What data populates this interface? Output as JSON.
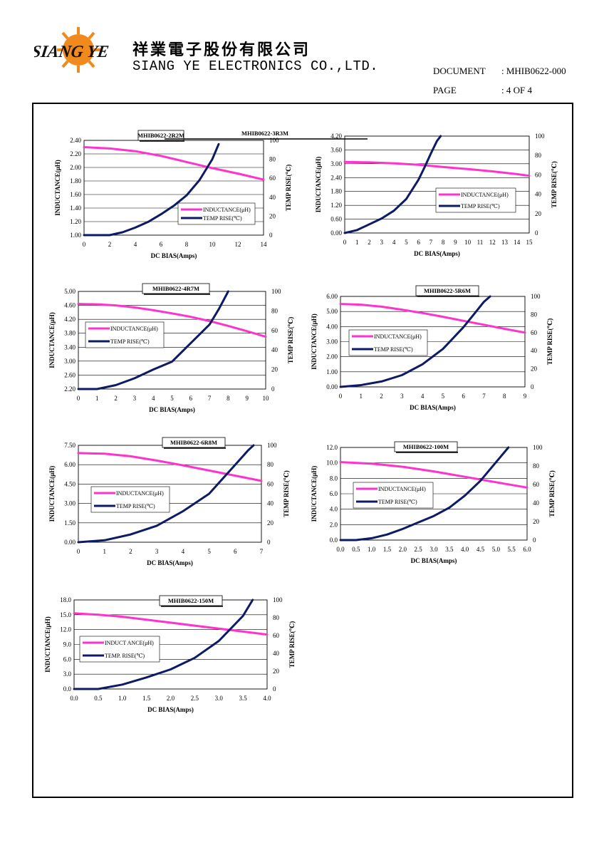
{
  "header": {
    "company_cn": "祥業電子股份有限公司",
    "company_en": "SIANG YE ELECTRONICS CO.,LTD.",
    "logo_text": "SIANG YE",
    "document_label": "DOCUMENT",
    "document_value": ": MHIB0622-000",
    "page_label": "PAGE",
    "page_value": ": 4 OF 4"
  },
  "colors": {
    "inductance": "#ff33cc",
    "temp": "#0d1a66",
    "grid": "#000000"
  },
  "chart_data": [
    {
      "type": "line",
      "title": "MHIB0622-2R2M",
      "xlabel": "DC BIAS(Amps)",
      "ylabel": "INDUCTANCE(μH)",
      "y2label": "TEMP RISE(℃)",
      "xlim": [
        0,
        14
      ],
      "xticks": [
        "0",
        "2",
        "4",
        "6",
        "8",
        "10",
        "12",
        "14"
      ],
      "ylim": [
        1.0,
        2.4
      ],
      "yticks": [
        "1.00",
        "1.20",
        "1.40",
        "1.60",
        "1.80",
        "2.00",
        "2.20",
        "2.40"
      ],
      "y2lim": [
        0,
        100
      ],
      "y2ticks": [
        "0",
        "20",
        "40",
        "60",
        "80",
        "100"
      ],
      "legend": {
        "placement": "lower-right",
        "inductance": "INDUCTANCE(μH)",
        "temp": "TEMP RISE(℃)"
      },
      "series": [
        {
          "name": "INDUCTANCE(μH)",
          "axis": "left",
          "x": [
            0,
            2,
            4,
            6,
            8,
            10,
            12,
            14
          ],
          "y": [
            2.3,
            2.28,
            2.24,
            2.17,
            2.08,
            1.99,
            1.91,
            1.82
          ]
        },
        {
          "name": "TEMP RISE(℃)",
          "axis": "right",
          "x": [
            0,
            1,
            2,
            3,
            4,
            5,
            6,
            7,
            8,
            9,
            10,
            10.5
          ],
          "y": [
            0,
            0,
            0,
            3,
            8,
            14,
            22,
            31,
            42,
            58,
            80,
            96
          ]
        }
      ]
    },
    {
      "type": "line",
      "title": "MHIB0622-3R3M",
      "xlabel": "DC BIAS(Amps)",
      "ylabel": "INDUCTANCE(μH)",
      "y2label": "TEMP RISE(℃)",
      "xlim": [
        0,
        15
      ],
      "xticks": [
        "0",
        "1",
        "2",
        "3",
        "4",
        "5",
        "6",
        "7",
        "8",
        "9",
        "10",
        "11",
        "12",
        "13",
        "14",
        "15"
      ],
      "ylim": [
        0,
        4.2
      ],
      "yticks": [
        "0.00",
        "0.60",
        "1.20",
        "1.80",
        "2.40",
        "3.00",
        "3.60",
        "4.20"
      ],
      "y2lim": [
        0,
        100
      ],
      "y2ticks": [
        "0",
        "20",
        "40",
        "60",
        "80",
        "100"
      ],
      "legend": {
        "placement": "right",
        "inductance": "INDUCTANCE(μH)",
        "temp": "TEMP RISE(℃)"
      },
      "series": [
        {
          "name": "INDUCTANCE(μH)",
          "axis": "left",
          "x": [
            0,
            2,
            4,
            6,
            8,
            10,
            12,
            14,
            15
          ],
          "y": [
            3.08,
            3.06,
            3.02,
            2.96,
            2.86,
            2.77,
            2.67,
            2.55,
            2.48
          ]
        },
        {
          "name": "TEMP RISE(℃)",
          "axis": "right",
          "x": [
            0,
            1,
            2,
            3,
            4,
            5,
            6,
            6.5,
            7,
            7.5,
            7.8
          ],
          "y": [
            0,
            3,
            9,
            15,
            23,
            35,
            55,
            68,
            82,
            95,
            100
          ]
        }
      ]
    },
    {
      "type": "line",
      "title": "MHIB0622-4R7M",
      "xlabel": "DC BIAS(Amps)",
      "ylabel": "INDUCTANCE(μH)",
      "y2label": "TEMP RISE(℃)",
      "xlim": [
        0,
        10
      ],
      "xticks": [
        "0",
        "1",
        "2",
        "3",
        "4",
        "5",
        "6",
        "7",
        "8",
        "9",
        "10"
      ],
      "ylim": [
        2.2,
        5.0
      ],
      "yticks": [
        "2.20",
        "2.60",
        "3.00",
        "3.40",
        "3.80",
        "4.20",
        "4.60",
        "5.00"
      ],
      "y2lim": [
        0,
        100
      ],
      "y2ticks": [
        "0",
        "20",
        "40",
        "60",
        "80",
        "100"
      ],
      "legend": {
        "placement": "left",
        "inductance": "INDUCTANCE(μH)",
        "temp": "TEMP RISE(℃)"
      },
      "series": [
        {
          "name": "INDUCTANCE(μH)",
          "axis": "left",
          "x": [
            0,
            1,
            2,
            3,
            4,
            5,
            6,
            7,
            8,
            9,
            10
          ],
          "y": [
            4.64,
            4.63,
            4.6,
            4.54,
            4.46,
            4.37,
            4.27,
            4.15,
            4.01,
            3.86,
            3.7
          ]
        },
        {
          "name": "TEMP RISE(℃)",
          "axis": "right",
          "x": [
            0,
            1,
            2,
            3,
            4,
            5,
            6,
            7,
            7.5,
            8
          ],
          "y": [
            0,
            0,
            4,
            11,
            20,
            28,
            47,
            66,
            82,
            100
          ]
        }
      ]
    },
    {
      "type": "line",
      "title": "MHIB0622-5R6M",
      "xlabel": "DC BIAS(Amps)",
      "ylabel": "INDUCTANCE(μH)",
      "y2label": "TEMP RISE(℃)",
      "xlim": [
        0,
        9
      ],
      "xticks": [
        "0",
        "1",
        "2",
        "3",
        "4",
        "5",
        "6",
        "7",
        "8",
        "9"
      ],
      "ylim": [
        0,
        6.0
      ],
      "yticks": [
        "0.00",
        "1.00",
        "2.00",
        "3.00",
        "4.00",
        "5.00",
        "6.00"
      ],
      "y2lim": [
        0,
        100
      ],
      "y2ticks": [
        "0",
        "20",
        "40",
        "60",
        "80",
        "100"
      ],
      "legend": {
        "placement": "left",
        "inductance": "INDUCTANCE(μH)",
        "temp": "TEMP RISE(℃)"
      },
      "series": [
        {
          "name": "INDUCTANCE(μH)",
          "axis": "left",
          "x": [
            0,
            1,
            2,
            3,
            4,
            5,
            6,
            7,
            8,
            9
          ],
          "y": [
            5.5,
            5.45,
            5.32,
            5.12,
            4.9,
            4.65,
            4.38,
            4.12,
            3.85,
            3.6
          ]
        },
        {
          "name": "TEMP RISE(℃)",
          "axis": "right",
          "x": [
            0,
            1,
            2,
            3,
            4,
            5,
            6,
            6.5,
            7,
            7.3
          ],
          "y": [
            0,
            2,
            6,
            13,
            25,
            42,
            66,
            80,
            94,
            100
          ]
        }
      ]
    },
    {
      "type": "line",
      "title": "MHIB0622-6R8M",
      "xlabel": "DC BIAS(Amps)",
      "ylabel": "INDUCTANCE(μH)",
      "y2label": "TEMP RISE(℃)",
      "xlim": [
        0,
        7
      ],
      "xticks": [
        "0",
        "1",
        "2",
        "3",
        "4",
        "5",
        "6",
        "7"
      ],
      "ylim": [
        0,
        7.5
      ],
      "yticks": [
        "0.00",
        "1.50",
        "3.00",
        "4.50",
        "6.00",
        "7.50"
      ],
      "y2lim": [
        0,
        100
      ],
      "y2ticks": [
        "0",
        "20",
        "40",
        "60",
        "80",
        "100"
      ],
      "legend": {
        "placement": "left",
        "inductance": "INDUCTANCE(μH)",
        "temp": "TEMP RISE(℃)"
      },
      "series": [
        {
          "name": "INDUCTANCE(μH)",
          "axis": "left",
          "x": [
            0,
            1,
            2,
            3,
            4,
            5,
            6,
            7
          ],
          "y": [
            6.9,
            6.85,
            6.65,
            6.32,
            5.95,
            5.55,
            5.15,
            4.75
          ]
        },
        {
          "name": "TEMP RISE(℃)",
          "axis": "right",
          "x": [
            0,
            1,
            2,
            3,
            4,
            5,
            5.5,
            6,
            6.5,
            6.7
          ],
          "y": [
            0,
            2,
            8,
            17,
            32,
            50,
            65,
            80,
            95,
            100
          ]
        }
      ]
    },
    {
      "type": "line",
      "title": "MHIB0622-100M",
      "xlabel": "DC BIAS(Amps)",
      "ylabel": "INDUCTANCE(μH)",
      "y2label": "TEMP RISE(℃)",
      "xlim": [
        0,
        6
      ],
      "xticks": [
        "0.0",
        "0.5",
        "1.0",
        "1.5",
        "2.0",
        "2.5",
        "3.0",
        "3.5",
        "4.0",
        "4.5",
        "5.0",
        "5.5",
        "6.0"
      ],
      "ylim": [
        0,
        12.0
      ],
      "yticks": [
        "0.0",
        "2.0",
        "4.0",
        "6.0",
        "8.0",
        "10.0",
        "12.0"
      ],
      "y2lim": [
        0,
        100
      ],
      "y2ticks": [
        "0",
        "20",
        "40",
        "60",
        "80",
        "100"
      ],
      "legend": {
        "placement": "center",
        "inductance": "INDUCTANCE(μH)",
        "temp": "TEMP RISE(℃)"
      },
      "series": [
        {
          "name": "INDUCTANCE(μH)",
          "axis": "left",
          "x": [
            0,
            1,
            2,
            3,
            4,
            5,
            6
          ],
          "y": [
            10.1,
            9.9,
            9.5,
            8.9,
            8.2,
            7.5,
            6.8
          ]
        },
        {
          "name": "TEMP RISE(℃)",
          "axis": "right",
          "x": [
            0,
            0.5,
            1,
            1.5,
            2,
            2.5,
            3,
            3.5,
            4,
            4.5,
            5,
            5.4
          ],
          "y": [
            0,
            0,
            2,
            6,
            12,
            19,
            26,
            35,
            48,
            64,
            84,
            100
          ]
        }
      ]
    },
    {
      "type": "line",
      "title": "MHIB0622-150M",
      "xlabel": "DC BIAS(Amps)",
      "ylabel": "INDUCTANCE(μH)",
      "y2label": "TEMP RISE(℃)",
      "xlim": [
        0,
        4
      ],
      "xticks": [
        "0.0",
        "0.5",
        "1.0",
        "1.5",
        "2.0",
        "2.5",
        "3.0",
        "3.5",
        "4.0"
      ],
      "ylim": [
        0,
        18.0
      ],
      "yticks": [
        "0.0",
        "3.0",
        "6.0",
        "9.0",
        "12.0",
        "15.0",
        "18.0"
      ],
      "y2lim": [
        0,
        100
      ],
      "y2ticks": [
        "0",
        "20",
        "40",
        "60",
        "80",
        "100"
      ],
      "legend": {
        "placement": "left",
        "inductance": "INDUCT ANCE(μH)",
        "temp": "TEMP. RISE(℃)"
      },
      "series": [
        {
          "name": "INDUCT ANCE(μH)",
          "axis": "left",
          "x": [
            0,
            0.5,
            1,
            1.5,
            2,
            2.5,
            3,
            3.5,
            4
          ],
          "y": [
            15.3,
            15.0,
            14.6,
            14.0,
            13.4,
            12.8,
            12.2,
            11.6,
            11.0
          ]
        },
        {
          "name": "TEMP. RISE(℃)",
          "axis": "right",
          "x": [
            0,
            0.5,
            1,
            1.5,
            2,
            2.5,
            3,
            3.5,
            3.7
          ],
          "y": [
            0,
            0,
            5,
            13,
            22,
            35,
            54,
            82,
            100
          ]
        }
      ]
    }
  ]
}
